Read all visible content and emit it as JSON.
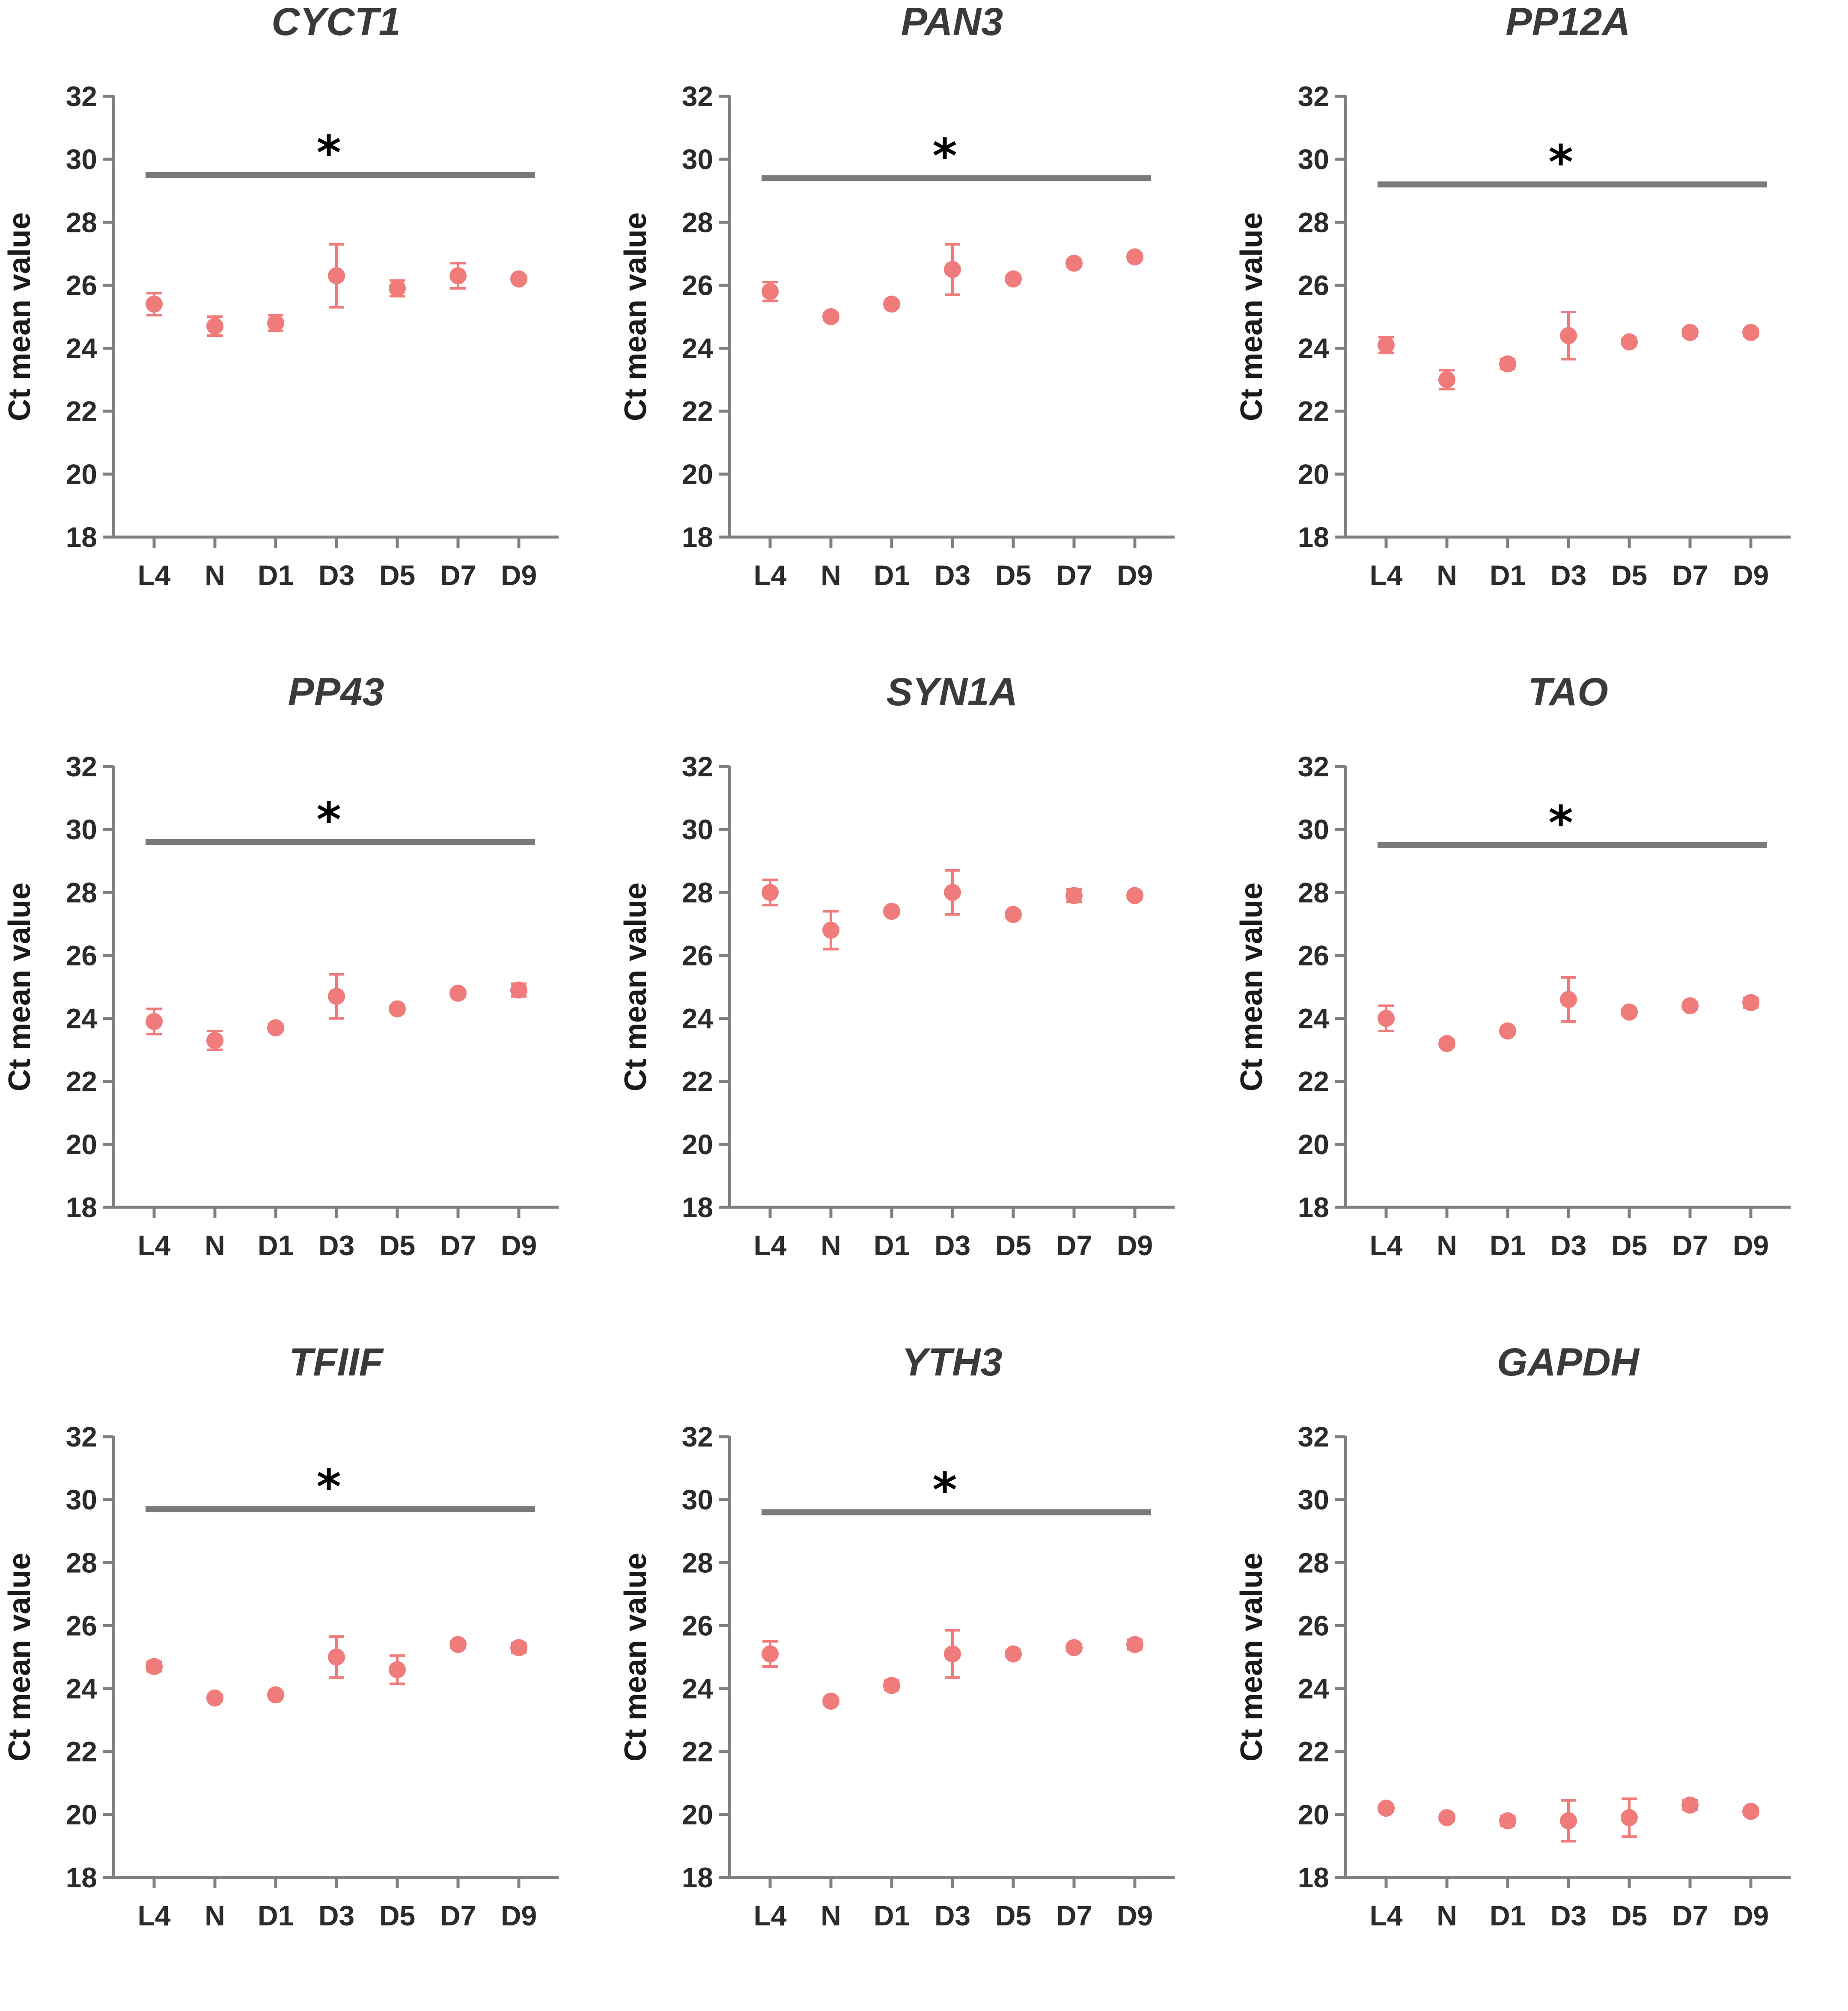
{
  "figure": {
    "colors": {
      "marker": "#f07b7b",
      "axis": "#808080",
      "sig_bar": "#7a7a7a",
      "text": "#2b2b2b"
    }
  },
  "chart_data": [
    {
      "type": "scatter",
      "title": "CYCT1",
      "ylabel": "Ct mean value",
      "xlabel": "",
      "categories": [
        "L4",
        "N",
        "D1",
        "D3",
        "D5",
        "D7",
        "D9"
      ],
      "values": [
        25.4,
        24.7,
        24.8,
        26.3,
        25.9,
        26.3,
        26.2
      ],
      "errors": [
        0.35,
        0.3,
        0.25,
        1.0,
        0.25,
        0.4,
        0.1
      ],
      "ylim": [
        18,
        32
      ],
      "yticks": [
        18,
        20,
        22,
        24,
        26,
        28,
        30,
        32
      ],
      "significance": {
        "label": "*",
        "y": 29.5
      }
    },
    {
      "type": "scatter",
      "title": "PAN3",
      "ylabel": "Ct mean value",
      "xlabel": "",
      "categories": [
        "L4",
        "N",
        "D1",
        "D3",
        "D5",
        "D7",
        "D9"
      ],
      "values": [
        25.8,
        25.0,
        25.4,
        26.5,
        26.2,
        26.7,
        26.9
      ],
      "errors": [
        0.3,
        0.1,
        0.1,
        0.8,
        0.1,
        0.1,
        0.1
      ],
      "ylim": [
        18,
        32
      ],
      "yticks": [
        18,
        20,
        22,
        24,
        26,
        28,
        30,
        32
      ],
      "significance": {
        "label": "*",
        "y": 29.4
      }
    },
    {
      "type": "scatter",
      "title": "PP12A",
      "ylabel": "Ct mean value",
      "xlabel": "",
      "categories": [
        "L4",
        "N",
        "D1",
        "D3",
        "D5",
        "D7",
        "D9"
      ],
      "values": [
        24.1,
        23.0,
        23.5,
        24.4,
        24.2,
        24.5,
        24.5
      ],
      "errors": [
        0.25,
        0.3,
        0.15,
        0.75,
        0.1,
        0.1,
        0.1
      ],
      "ylim": [
        18,
        32
      ],
      "yticks": [
        18,
        20,
        22,
        24,
        26,
        28,
        30,
        32
      ],
      "significance": {
        "label": "*",
        "y": 29.2
      }
    },
    {
      "type": "scatter",
      "title": "PP43",
      "ylabel": "Ct mean value",
      "xlabel": "",
      "categories": [
        "L4",
        "N",
        "D1",
        "D3",
        "D5",
        "D7",
        "D9"
      ],
      "values": [
        23.9,
        23.3,
        23.7,
        24.7,
        24.3,
        24.8,
        24.9
      ],
      "errors": [
        0.4,
        0.3,
        0.1,
        0.7,
        0.1,
        0.1,
        0.2
      ],
      "ylim": [
        18,
        32
      ],
      "yticks": [
        18,
        20,
        22,
        24,
        26,
        28,
        30,
        32
      ],
      "significance": {
        "label": "*",
        "y": 29.6
      }
    },
    {
      "type": "scatter",
      "title": "SYN1A",
      "ylabel": "Ct mean value",
      "xlabel": "",
      "categories": [
        "L4",
        "N",
        "D1",
        "D3",
        "D5",
        "D7",
        "D9"
      ],
      "values": [
        28.0,
        26.8,
        27.4,
        28.0,
        27.3,
        27.9,
        27.9
      ],
      "errors": [
        0.4,
        0.6,
        0.1,
        0.7,
        0.1,
        0.2,
        0.1
      ],
      "ylim": [
        18,
        32
      ],
      "yticks": [
        18,
        20,
        22,
        24,
        26,
        28,
        30,
        32
      ],
      "significance": null
    },
    {
      "type": "scatter",
      "title": "TAO",
      "ylabel": "Ct mean value",
      "xlabel": "",
      "categories": [
        "L4",
        "N",
        "D1",
        "D3",
        "D5",
        "D7",
        "D9"
      ],
      "values": [
        24.0,
        23.2,
        23.6,
        24.6,
        24.2,
        24.4,
        24.5
      ],
      "errors": [
        0.4,
        0.1,
        0.1,
        0.7,
        0.1,
        0.1,
        0.15
      ],
      "ylim": [
        18,
        32
      ],
      "yticks": [
        18,
        20,
        22,
        24,
        26,
        28,
        30,
        32
      ],
      "significance": {
        "label": "*",
        "y": 29.5
      }
    },
    {
      "type": "scatter",
      "title": "TFIIF",
      "ylabel": "Ct mean value",
      "xlabel": "",
      "categories": [
        "L4",
        "N",
        "D1",
        "D3",
        "D5",
        "D7",
        "D9"
      ],
      "values": [
        24.7,
        23.7,
        23.8,
        25.0,
        24.6,
        25.4,
        25.3
      ],
      "errors": [
        0.15,
        0.1,
        0.1,
        0.65,
        0.45,
        0.1,
        0.15
      ],
      "ylim": [
        18,
        32
      ],
      "yticks": [
        18,
        20,
        22,
        24,
        26,
        28,
        30,
        32
      ],
      "significance": {
        "label": "*",
        "y": 29.7
      }
    },
    {
      "type": "scatter",
      "title": "YTH3",
      "ylabel": "Ct mean value",
      "xlabel": "",
      "categories": [
        "L4",
        "N",
        "D1",
        "D3",
        "D5",
        "D7",
        "D9"
      ],
      "values": [
        25.1,
        23.6,
        24.1,
        25.1,
        25.1,
        25.3,
        25.4
      ],
      "errors": [
        0.4,
        0.1,
        0.15,
        0.75,
        0.1,
        0.1,
        0.15
      ],
      "ylim": [
        18,
        32
      ],
      "yticks": [
        18,
        20,
        22,
        24,
        26,
        28,
        30,
        32
      ],
      "significance": {
        "label": "*",
        "y": 29.6
      }
    },
    {
      "type": "scatter",
      "title": "GAPDH",
      "ylabel": "Ct mean value",
      "xlabel": "",
      "categories": [
        "L4",
        "N",
        "D1",
        "D3",
        "D5",
        "D7",
        "D9"
      ],
      "values": [
        20.2,
        19.9,
        19.8,
        19.8,
        19.9,
        20.3,
        20.1
      ],
      "errors": [
        0.1,
        0.1,
        0.15,
        0.65,
        0.6,
        0.15,
        0.1
      ],
      "ylim": [
        18,
        32
      ],
      "yticks": [
        18,
        20,
        22,
        24,
        26,
        28,
        30,
        32
      ],
      "significance": null
    }
  ]
}
